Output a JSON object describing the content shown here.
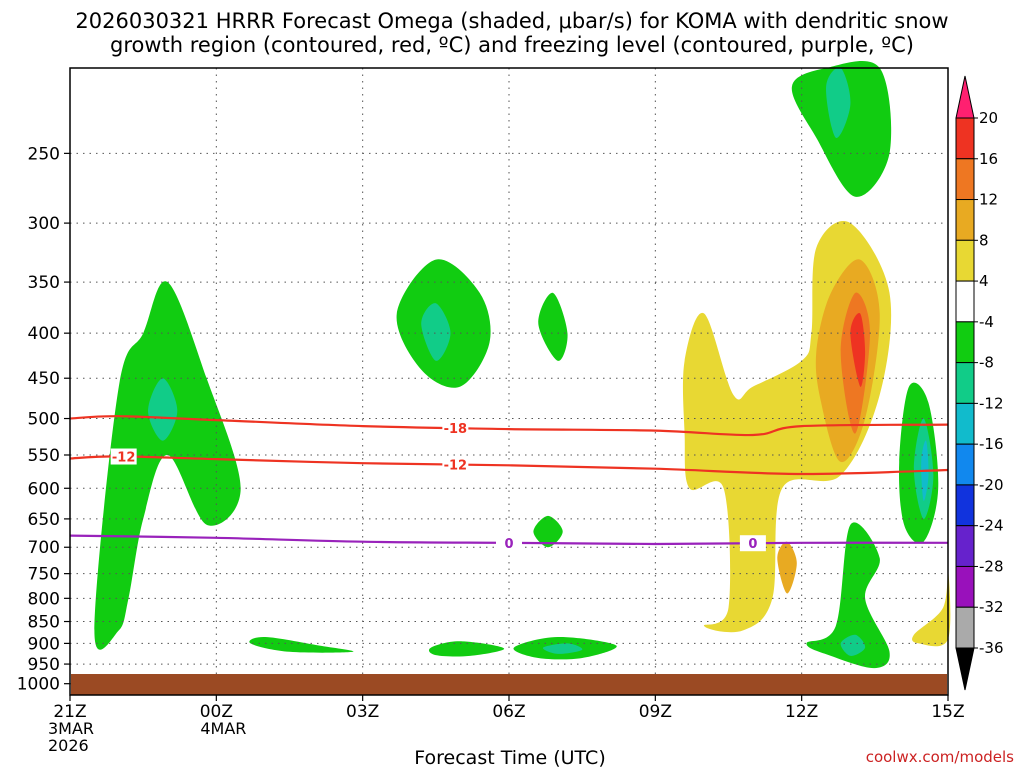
{
  "chart_data": {
    "type": "time-height contour",
    "title_line1": "2026030321 HRRR Forecast Omega (shaded, μbar/s) for KOMA with dendritic snow",
    "title_line2": "growth region (contoured, red, ºC) and freezing level (contoured, purple, ºC)",
    "xlabel": "Forecast Time (UTC)",
    "x_ticks": [
      {
        "hour": 0,
        "lines": [
          "21Z",
          "3MAR",
          "2026"
        ]
      },
      {
        "hour": 3,
        "lines": [
          "00Z",
          "4MAR"
        ]
      },
      {
        "hour": 6,
        "lines": [
          "03Z"
        ]
      },
      {
        "hour": 9,
        "lines": [
          "06Z"
        ]
      },
      {
        "hour": 12,
        "lines": [
          "09Z"
        ]
      },
      {
        "hour": 15,
        "lines": [
          "12Z"
        ]
      },
      {
        "hour": 18,
        "lines": [
          "15Z"
        ]
      }
    ],
    "x_range_hours": [
      0,
      18
    ],
    "y_ticks_hpa": [
      250,
      300,
      350,
      400,
      450,
      500,
      550,
      600,
      650,
      700,
      750,
      800,
      850,
      900,
      950,
      1000
    ],
    "y_range_hpa": [
      200,
      1030
    ],
    "ground_level_hpa": 975,
    "colorbar": {
      "labels": [
        "20",
        "16",
        "12",
        "8",
        "4",
        "-4",
        "-8",
        "-12",
        "-16",
        "-20",
        "-24",
        "-28",
        "-32",
        "-36"
      ],
      "colors": [
        "#ff2070",
        "#ee3322",
        "#ee7722",
        "#e8aa22",
        "#e8d833",
        "#ffffff",
        "#11cc11",
        "#11cc88",
        "#11bbcc",
        "#1188ee",
        "#1133dd",
        "#6622cc",
        "#9911bb",
        "#aaaaaa",
        "#000000"
      ]
    },
    "contours": [
      {
        "name": "dgz-minus18",
        "level": -18,
        "color": "#ee3322",
        "label": "-18",
        "label_hour": 7.9,
        "points": [
          [
            0,
            500
          ],
          [
            1,
            497
          ],
          [
            3,
            502
          ],
          [
            6,
            510
          ],
          [
            9,
            514
          ],
          [
            12,
            516
          ],
          [
            14,
            522
          ],
          [
            15,
            510
          ],
          [
            18,
            508
          ]
        ]
      },
      {
        "name": "dgz-minus12",
        "level": -12,
        "color": "#ee3322",
        "label": "-12",
        "label_hour": 7.9,
        "label2": "-12",
        "label2_hour": 1.1,
        "points": [
          [
            0,
            555
          ],
          [
            1,
            552
          ],
          [
            3,
            556
          ],
          [
            6,
            562
          ],
          [
            9,
            565
          ],
          [
            12,
            570
          ],
          [
            15,
            578
          ],
          [
            18,
            572
          ]
        ]
      },
      {
        "name": "freezing-level-0",
        "level": 0,
        "color": "#9922bb",
        "label": "0",
        "label_hour": 9.0,
        "label2": "0",
        "label2_hour": 14.0,
        "points": [
          [
            0,
            679
          ],
          [
            3,
            683
          ],
          [
            6,
            690
          ],
          [
            9,
            692
          ],
          [
            12,
            694
          ],
          [
            15,
            692
          ],
          [
            18,
            692
          ]
        ]
      }
    ],
    "omega_regions": [
      {
        "name": "rising-area-early-1",
        "color": "#11cc11",
        "polygon": [
          [
            0.5,
            870
          ],
          [
            1.0,
            460
          ],
          [
            1.5,
            400
          ],
          [
            2.0,
            350
          ],
          [
            2.8,
            450
          ],
          [
            3.5,
            600
          ],
          [
            2.8,
            660
          ],
          [
            2.0,
            550
          ],
          [
            1.5,
            650
          ],
          [
            1.2,
            800
          ],
          [
            1.0,
            870
          ]
        ]
      },
      {
        "name": "rising-area-early-1-core",
        "color": "#11cc88",
        "polygon": [
          [
            1.6,
            490
          ],
          [
            1.9,
            450
          ],
          [
            2.2,
            490
          ],
          [
            1.9,
            530
          ]
        ]
      },
      {
        "name": "rising-area-06z",
        "color": "#11cc11",
        "polygon": [
          [
            6.7,
            380
          ],
          [
            7.5,
            330
          ],
          [
            8.4,
            360
          ],
          [
            8.6,
            410
          ],
          [
            8.0,
            460
          ],
          [
            7.2,
            440
          ]
        ]
      },
      {
        "name": "rising-area-06z-core",
        "color": "#11cc88",
        "polygon": [
          [
            7.2,
            390
          ],
          [
            7.5,
            370
          ],
          [
            7.8,
            400
          ],
          [
            7.5,
            430
          ]
        ]
      },
      {
        "name": "rising-area-08z",
        "color": "#11cc11",
        "polygon": [
          [
            9.6,
            390
          ],
          [
            9.9,
            360
          ],
          [
            10.2,
            400
          ],
          [
            10.0,
            430
          ]
        ]
      },
      {
        "name": "rising-area-08z-small",
        "color": "#11cc11",
        "polygon": [
          [
            9.5,
            672
          ],
          [
            9.8,
            645
          ],
          [
            10.1,
            672
          ],
          [
            9.8,
            700
          ]
        ]
      },
      {
        "name": "sinking-area-main",
        "color": "#e8d833",
        "polygon": [
          [
            12.6,
            430
          ],
          [
            13.0,
            380
          ],
          [
            13.6,
            470
          ],
          [
            14.0,
            460
          ],
          [
            15.0,
            430
          ],
          [
            15.2,
            400
          ],
          [
            15.3,
            320
          ],
          [
            16.0,
            300
          ],
          [
            16.8,
            360
          ],
          [
            16.6,
            470
          ],
          [
            15.8,
            580
          ],
          [
            14.6,
            600
          ],
          [
            14.4,
            800
          ],
          [
            13.8,
            870
          ],
          [
            13.0,
            860
          ],
          [
            13.5,
            820
          ],
          [
            13.4,
            600
          ],
          [
            12.7,
            600
          ],
          [
            12.6,
            520
          ]
        ]
      },
      {
        "name": "sinking-area-main-1",
        "color": "#e8aa22",
        "polygon": [
          [
            15.3,
            420
          ],
          [
            15.6,
            360
          ],
          [
            16.2,
            330
          ],
          [
            16.6,
            380
          ],
          [
            16.3,
            500
          ],
          [
            15.8,
            560
          ],
          [
            15.4,
            480
          ]
        ]
      },
      {
        "name": "sinking-area-main-2",
        "color": "#ee7722",
        "polygon": [
          [
            15.8,
            420
          ],
          [
            16.1,
            360
          ],
          [
            16.4,
            400
          ],
          [
            16.1,
            520
          ]
        ]
      },
      {
        "name": "sinking-area-main-3",
        "color": "#ee3322",
        "polygon": [
          [
            16.0,
            400
          ],
          [
            16.2,
            380
          ],
          [
            16.3,
            420
          ],
          [
            16.2,
            460
          ]
        ]
      },
      {
        "name": "sinking-area-low",
        "color": "#e8aa22",
        "polygon": [
          [
            14.5,
            720
          ],
          [
            14.7,
            690
          ],
          [
            14.9,
            730
          ],
          [
            14.7,
            790
          ]
        ]
      },
      {
        "name": "sinking-area-low-2",
        "color": "#e8d833",
        "polygon": [
          [
            17.3,
            880
          ],
          [
            17.9,
            820
          ],
          [
            18.0,
            740
          ],
          [
            18.0,
            890
          ],
          [
            17.4,
            900
          ]
        ]
      },
      {
        "name": "rising-area-late-1",
        "color": "#11cc11",
        "polygon": [
          [
            15.5,
            200
          ],
          [
            16.6,
            200
          ],
          [
            16.8,
            250
          ],
          [
            16.1,
            280
          ],
          [
            15.3,
            240
          ],
          [
            14.8,
            210
          ]
        ]
      },
      {
        "name": "rising-area-late-1-core",
        "color": "#11cc88",
        "polygon": [
          [
            15.5,
            210
          ],
          [
            15.8,
            200
          ],
          [
            16.0,
            220
          ],
          [
            15.7,
            240
          ]
        ]
      },
      {
        "name": "rising-area-late-2",
        "color": "#11cc11",
        "polygon": [
          [
            17.0,
            560
          ],
          [
            17.2,
            460
          ],
          [
            17.6,
            480
          ],
          [
            17.8,
            600
          ],
          [
            17.5,
            690
          ],
          [
            17.1,
            660
          ]
        ]
      },
      {
        "name": "rising-area-late-2-core",
        "color": "#11cc88",
        "polygon": [
          [
            17.3,
            570
          ],
          [
            17.5,
            500
          ],
          [
            17.7,
            580
          ],
          [
            17.5,
            650
          ]
        ]
      },
      {
        "name": "rising-area-late-2-inner",
        "color": "#11bbcc",
        "polygon": [
          [
            17.45,
            560
          ],
          [
            17.55,
            530
          ],
          [
            17.6,
            580
          ],
          [
            17.5,
            620
          ]
        ]
      },
      {
        "name": "rising-area-late-3",
        "color": "#11cc11",
        "polygon": [
          [
            15.1,
            900
          ],
          [
            15.7,
            860
          ],
          [
            16.0,
            660
          ],
          [
            16.6,
            720
          ],
          [
            16.3,
            800
          ],
          [
            16.8,
            920
          ],
          [
            16.5,
            960
          ],
          [
            15.6,
            930
          ]
        ]
      },
      {
        "name": "rising-area-late-3-core",
        "color": "#11cc88",
        "polygon": [
          [
            15.8,
            900
          ],
          [
            16.1,
            880
          ],
          [
            16.3,
            910
          ],
          [
            16.0,
            930
          ]
        ]
      },
      {
        "name": "rising-area-low-2",
        "color": "#11cc11",
        "polygon": [
          [
            3.7,
            900
          ],
          [
            4.0,
            885
          ],
          [
            5.1,
            905
          ],
          [
            5.8,
            920
          ],
          [
            4.5,
            920
          ]
        ]
      },
      {
        "name": "rising-area-low-3",
        "color": "#11cc11",
        "polygon": [
          [
            7.4,
            910
          ],
          [
            8.0,
            895
          ],
          [
            8.9,
            912
          ],
          [
            8.2,
            930
          ],
          [
            7.5,
            928
          ]
        ]
      },
      {
        "name": "rising-area-low-4",
        "color": "#11cc11",
        "polygon": [
          [
            9.1,
            910
          ],
          [
            10.0,
            885
          ],
          [
            11.2,
            905
          ],
          [
            10.5,
            935
          ],
          [
            9.6,
            935
          ]
        ]
      },
      {
        "name": "rising-area-low-4-core",
        "color": "#11cc88",
        "polygon": [
          [
            9.7,
            910
          ],
          [
            10.2,
            900
          ],
          [
            10.5,
            915
          ],
          [
            10.0,
            925
          ]
        ]
      }
    ],
    "credit": "coolwx.com/models"
  }
}
